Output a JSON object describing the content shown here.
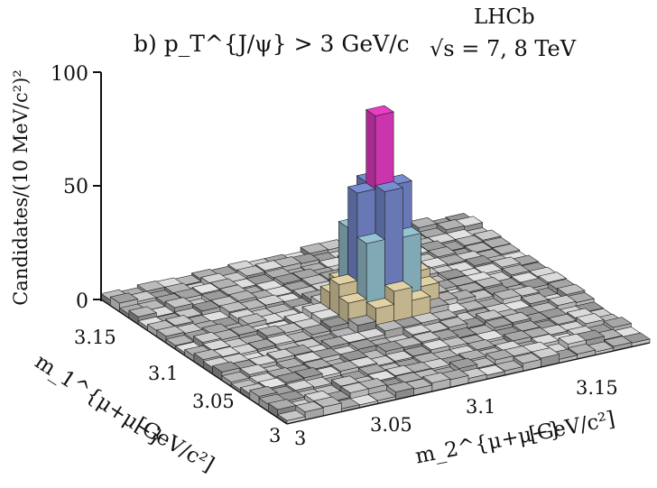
{
  "chart_data": {
    "type": "lego3d",
    "panel_label": "b) p_T^{J/ψ} > 3 GeV/c",
    "experiment": "LHCb",
    "energy": "√s = 7, 8 TeV",
    "zlabel": "Candidates/(10 MeV/c²)²",
    "x1label": "m_1^{μ+μ−}",
    "x2label": "m_2^{μ+μ−}",
    "units": "[GeV/c²]",
    "zlim": [
      0,
      100
    ],
    "z_ticks": [
      "100",
      "50",
      "0"
    ],
    "x1_ticks": [
      "3.15",
      "3.1",
      "3.05",
      "3"
    ],
    "x2_ticks": [
      "3",
      "3.05",
      "3.1",
      "3.15"
    ],
    "grid_bins": 20,
    "peak_value": 85
  }
}
